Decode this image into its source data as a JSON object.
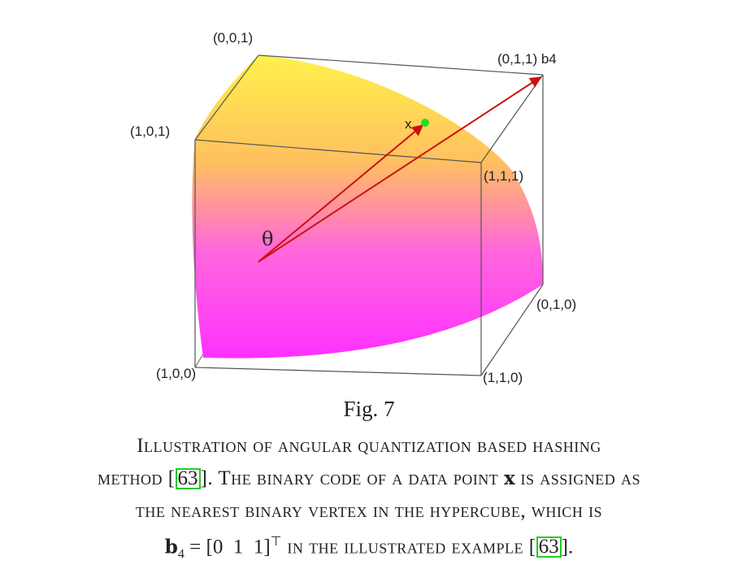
{
  "figure": {
    "vertices": {
      "v001": "(0,0,1)",
      "v011": "(0,1,1) b4",
      "v101": "(1,0,1)",
      "v111": "(1,1,1)",
      "v010": "(0,1,0)",
      "v100": "(1,0,0)",
      "v110": "(1,1,0)"
    },
    "point_label": "x",
    "angle_label": "θ",
    "colors": {
      "gradient_top": "#fff04a",
      "gradient_bottom": "#ff33ff",
      "arrow": "#cc1111",
      "point": "#22dd22",
      "edge": "#666666"
    }
  },
  "fig_label": "Fig. 7",
  "caption": {
    "line1": "Illustration of angular quantization based hashing",
    "line2_a": "method [",
    "line2_cite": "63",
    "line2_b": "]. The binary code of a data point ",
    "line2_x": "x",
    "line2_c": " is assigned as",
    "line3": "the nearest binary vertex in the hypercube, which is",
    "line4_b": "b",
    "line4_sub": "4",
    "line4_eq": " = [0  1  1]",
    "line4_sup": "⊤",
    "line4_text": " in the illustrated example [",
    "line4_cite": "63",
    "line4_end": "]."
  }
}
